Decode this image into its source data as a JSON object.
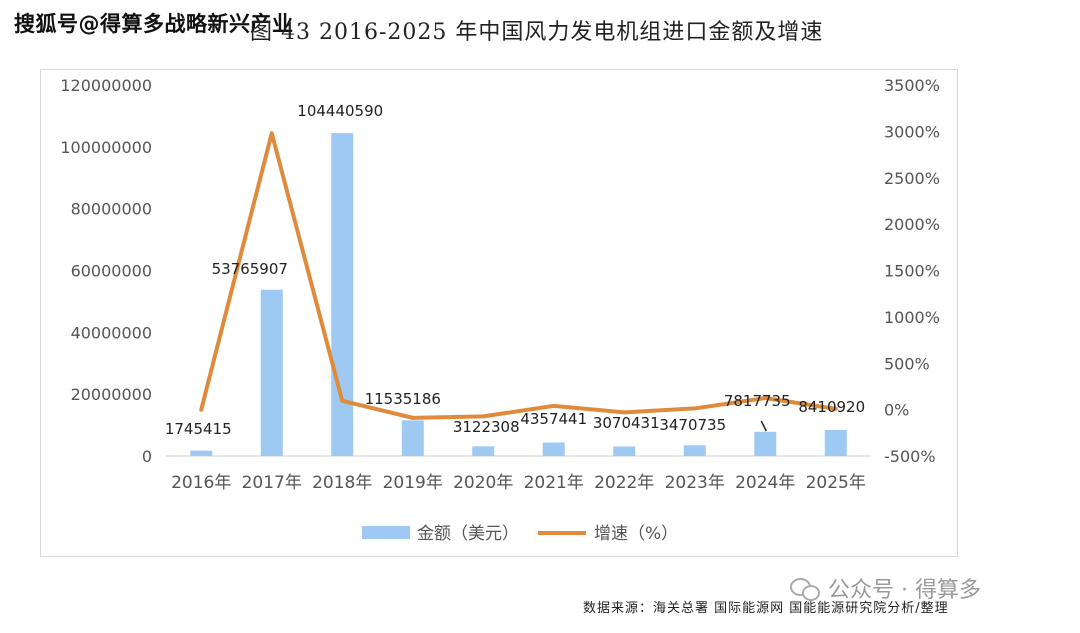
{
  "watermark_top": "搜狐号@得算多战略新兴产业",
  "figure_title": "图 43 2016-2025 年中国风力发电机组进口金额及增速",
  "source_note": "数据来源：海关总署 国际能源网 国能能源研究院分析/整理",
  "watermark_wechat": "公众号 · 得算多",
  "chart_data": {
    "type": "bar",
    "categories": [
      "2016年",
      "2017年",
      "2018年",
      "2019年",
      "2020年",
      "2021年",
      "2022年",
      "2023年",
      "2024年",
      "2025年"
    ],
    "series": [
      {
        "name": "金额（美元）",
        "type": "bar",
        "axis": "left",
        "color": "#9dc9f3",
        "values": [
          1745415,
          53765907,
          104440590,
          11535186,
          3122308,
          4357441,
          3070431,
          3470735,
          7817735,
          8410920
        ],
        "labels": [
          "1745415",
          "53765907",
          "104440590",
          "11535186",
          "3122308",
          "4357441",
          "3070431",
          "3470735",
          "7817735",
          "8410920"
        ]
      },
      {
        "name": "增速（%）",
        "type": "line",
        "axis": "right",
        "color": "#e08a3c",
        "values": [
          0,
          2980,
          95,
          -89,
          -73,
          40,
          -30,
          13,
          125,
          8
        ]
      }
    ],
    "left_axis": {
      "ylim": [
        0,
        120000000
      ],
      "ticks": [
        "0",
        "20000000",
        "40000000",
        "60000000",
        "80000000",
        "100000000",
        "120000000"
      ]
    },
    "right_axis": {
      "ylim": [
        -500,
        3500
      ],
      "ticks": [
        "-500%",
        "0%",
        "500%",
        "1000%",
        "1500%",
        "2000%",
        "2500%",
        "3000%",
        "3500%"
      ]
    },
    "grid": false,
    "legend": "bottom"
  }
}
